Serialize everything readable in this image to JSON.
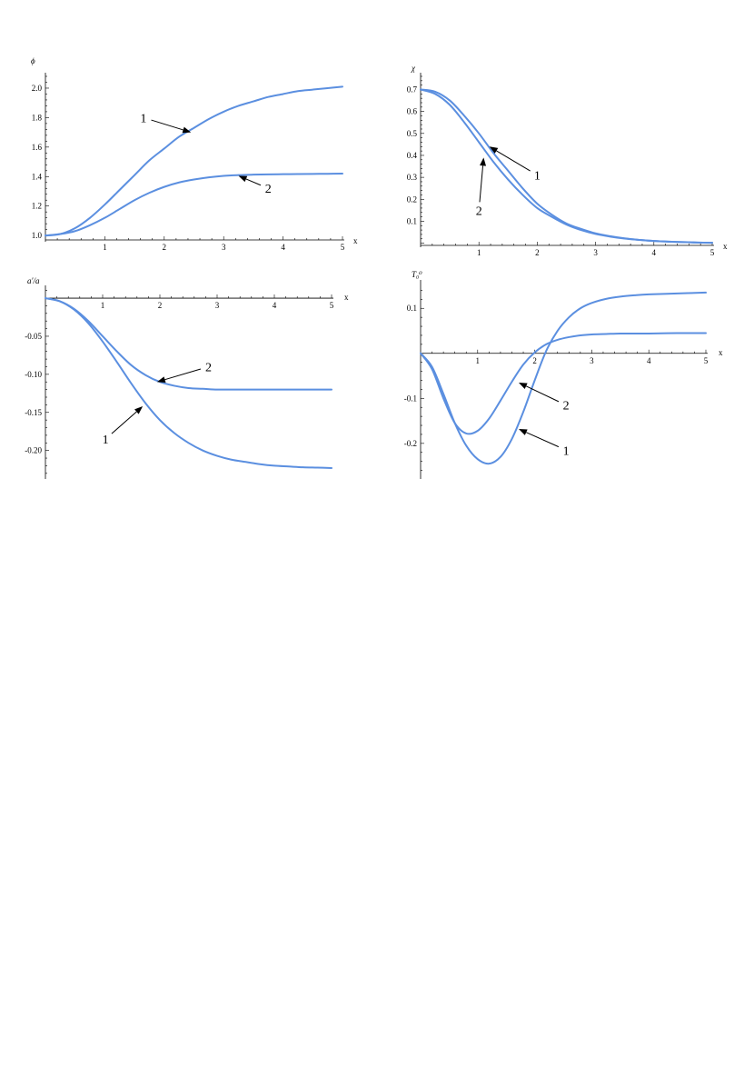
{
  "chart_data": [
    {
      "type": "line",
      "ylabel": "ϕ",
      "xlabel": "x",
      "xlim": [
        0,
        5
      ],
      "ylim": [
        0.97,
        2.08
      ],
      "x_ticks": [
        1,
        2,
        3,
        4,
        5
      ],
      "x_tick_labels": [
        "1",
        "2",
        "3",
        "4",
        "5"
      ],
      "y_ticks": [
        1.0,
        1.2,
        1.4,
        1.6,
        1.8,
        2.0
      ],
      "y_tick_labels": [
        "1.0",
        "1.2",
        "1.4",
        "1.6",
        "1.8",
        "2.0"
      ],
      "series": [
        {
          "label": "1",
          "x": [
            0,
            0.25,
            0.5,
            0.75,
            1,
            1.25,
            1.5,
            1.75,
            2,
            2.25,
            2.5,
            2.75,
            3,
            3.25,
            3.5,
            3.75,
            4,
            4.25,
            4.5,
            4.75,
            5
          ],
          "y": [
            1.0,
            1.01,
            1.05,
            1.12,
            1.21,
            1.31,
            1.41,
            1.51,
            1.59,
            1.67,
            1.73,
            1.79,
            1.84,
            1.88,
            1.91,
            1.94,
            1.96,
            1.98,
            1.99,
            2.0,
            2.01
          ]
        },
        {
          "label": "2",
          "x": [
            0,
            0.25,
            0.5,
            0.75,
            1,
            1.25,
            1.5,
            1.75,
            2,
            2.25,
            2.5,
            2.75,
            3,
            3.25,
            3.5,
            3.75,
            4,
            4.25,
            4.5,
            4.75,
            5
          ],
          "y": [
            1.0,
            1.01,
            1.03,
            1.07,
            1.12,
            1.18,
            1.24,
            1.29,
            1.33,
            1.36,
            1.38,
            1.395,
            1.405,
            1.41,
            1.413,
            1.415,
            1.416,
            1.417,
            1.418,
            1.419,
            1.42
          ]
        }
      ],
      "annotations": [
        {
          "text": "1",
          "text_at": [
            1.65,
            1.8
          ],
          "points_to": [
            2.45,
            1.7
          ]
        },
        {
          "text": "2",
          "text_at": [
            3.75,
            1.32
          ],
          "points_to": [
            3.25,
            1.405
          ]
        }
      ]
    },
    {
      "type": "line",
      "ylabel": "χ",
      "xlabel": "x",
      "xlim": [
        0,
        5
      ],
      "ylim": [
        -0.01,
        0.76
      ],
      "x_ticks": [
        1,
        2,
        3,
        4,
        5
      ],
      "x_tick_labels": [
        "1",
        "2",
        "3",
        "4",
        "5"
      ],
      "y_ticks": [
        0.1,
        0.2,
        0.3,
        0.4,
        0.5,
        0.6,
        0.7
      ],
      "y_tick_labels": [
        "0.1",
        "0.2",
        "0.3",
        "0.4",
        "0.5",
        "0.6",
        "0.7"
      ],
      "series": [
        {
          "label": "1",
          "x": [
            0,
            0.25,
            0.5,
            0.75,
            1,
            1.25,
            1.5,
            1.75,
            2,
            2.25,
            2.5,
            2.75,
            3,
            3.25,
            3.5,
            3.75,
            4,
            4.25,
            4.5,
            4.75,
            5
          ],
          "y": [
            0.7,
            0.69,
            0.65,
            0.58,
            0.5,
            0.41,
            0.33,
            0.25,
            0.18,
            0.13,
            0.09,
            0.065,
            0.045,
            0.032,
            0.022,
            0.015,
            0.01,
            0.007,
            0.005,
            0.003,
            0.002
          ]
        },
        {
          "label": "2",
          "x": [
            0,
            0.25,
            0.5,
            0.75,
            1,
            1.25,
            1.5,
            1.75,
            2,
            2.25,
            2.5,
            2.75,
            3,
            3.25,
            3.5,
            3.75,
            4,
            4.25,
            4.5,
            4.75,
            5
          ],
          "y": [
            0.7,
            0.68,
            0.63,
            0.55,
            0.46,
            0.37,
            0.29,
            0.22,
            0.16,
            0.12,
            0.085,
            0.06,
            0.042,
            0.03,
            0.021,
            0.015,
            0.01,
            0.007,
            0.005,
            0.003,
            0.002
          ]
        }
      ],
      "annotations": [
        {
          "text": "1",
          "text_at": [
            2.0,
            0.31
          ],
          "points_to": [
            1.18,
            0.44
          ]
        },
        {
          "text": "2",
          "text_at": [
            1.0,
            0.15
          ],
          "points_to": [
            1.08,
            0.39
          ]
        }
      ]
    },
    {
      "type": "line",
      "ylabel": "a′/a",
      "xlabel": "x",
      "xlim": [
        0,
        5
      ],
      "ylim": [
        -0.235,
        0.012
      ],
      "x_ticks": [
        1,
        2,
        3,
        4,
        5
      ],
      "x_tick_labels": [
        "1",
        "2",
        "3",
        "4",
        "5"
      ],
      "y_ticks": [
        -0.05,
        -0.1,
        -0.15,
        -0.2
      ],
      "y_tick_labels": [
        "-0.05",
        "-0.10",
        "-0.15",
        "-0.20"
      ],
      "series": [
        {
          "label": "1",
          "x": [
            0,
            0.25,
            0.5,
            0.75,
            1,
            1.25,
            1.5,
            1.75,
            2,
            2.25,
            2.5,
            2.75,
            3,
            3.25,
            3.5,
            3.75,
            4,
            4.25,
            4.5,
            4.75,
            5
          ],
          "y": [
            0,
            -0.004,
            -0.015,
            -0.033,
            -0.057,
            -0.084,
            -0.112,
            -0.138,
            -0.16,
            -0.177,
            -0.19,
            -0.2,
            -0.207,
            -0.212,
            -0.215,
            -0.218,
            -0.22,
            -0.221,
            -0.222,
            -0.2225,
            -0.223
          ]
        },
        {
          "label": "2",
          "x": [
            0,
            0.25,
            0.5,
            0.75,
            1,
            1.25,
            1.5,
            1.75,
            2,
            2.25,
            2.5,
            2.75,
            3,
            3.25,
            3.5,
            3.75,
            4,
            4.25,
            4.5,
            4.75,
            5
          ],
          "y": [
            0,
            -0.004,
            -0.014,
            -0.03,
            -0.05,
            -0.07,
            -0.088,
            -0.101,
            -0.11,
            -0.115,
            -0.118,
            -0.119,
            -0.12,
            -0.12,
            -0.12,
            -0.12,
            -0.12,
            -0.12,
            -0.12,
            -0.12,
            -0.12
          ]
        }
      ],
      "annotations": [
        {
          "text": "1",
          "text_at": [
            1.05,
            -0.185
          ],
          "points_to": [
            1.7,
            -0.142
          ]
        },
        {
          "text": "2",
          "text_at": [
            2.85,
            -0.09
          ],
          "points_to": [
            1.95,
            -0.11
          ]
        }
      ]
    },
    {
      "type": "line",
      "ylabel": "T₀⁰",
      "xlabel": "x",
      "xlim": [
        0,
        5
      ],
      "ylim": [
        -0.275,
        0.155
      ],
      "x_ticks": [
        1,
        2,
        3,
        4,
        5
      ],
      "x_tick_labels": [
        "1",
        "2",
        "3",
        "4",
        "5"
      ],
      "y_ticks": [
        0.1,
        -0.1,
        -0.2
      ],
      "y_tick_labels": [
        "0.1",
        "-0.1",
        "-0.2"
      ],
      "series": [
        {
          "label": "1",
          "x": [
            0,
            0.2,
            0.4,
            0.6,
            0.8,
            1.0,
            1.2,
            1.4,
            1.6,
            1.8,
            2.0,
            2.2,
            2.4,
            2.6,
            2.8,
            3.0,
            3.25,
            3.5,
            3.75,
            4.0,
            4.5,
            5.0
          ],
          "y": [
            0,
            -0.03,
            -0.09,
            -0.155,
            -0.205,
            -0.235,
            -0.245,
            -0.23,
            -0.19,
            -0.13,
            -0.06,
            0.005,
            0.05,
            0.08,
            0.1,
            0.112,
            0.121,
            0.126,
            0.129,
            0.131,
            0.133,
            0.135
          ]
        },
        {
          "label": "2",
          "x": [
            0,
            0.2,
            0.4,
            0.6,
            0.8,
            1.0,
            1.2,
            1.4,
            1.6,
            1.8,
            2.0,
            2.2,
            2.4,
            2.6,
            2.8,
            3.0,
            3.25,
            3.5,
            3.75,
            4.0,
            4.5,
            5.0
          ],
          "y": [
            0,
            -0.035,
            -0.1,
            -0.155,
            -0.178,
            -0.172,
            -0.145,
            -0.105,
            -0.063,
            -0.025,
            0.002,
            0.02,
            0.03,
            0.036,
            0.04,
            0.042,
            0.043,
            0.044,
            0.044,
            0.044,
            0.045,
            0.045
          ]
        }
      ],
      "annotations": [
        {
          "text": "1",
          "text_at": [
            2.55,
            -0.215
          ],
          "points_to": [
            1.72,
            -0.168
          ]
        },
        {
          "text": "2",
          "text_at": [
            2.55,
            -0.115
          ],
          "points_to": [
            1.72,
            -0.065
          ]
        }
      ]
    }
  ],
  "colors": {
    "curve": "#5b8fe0"
  }
}
